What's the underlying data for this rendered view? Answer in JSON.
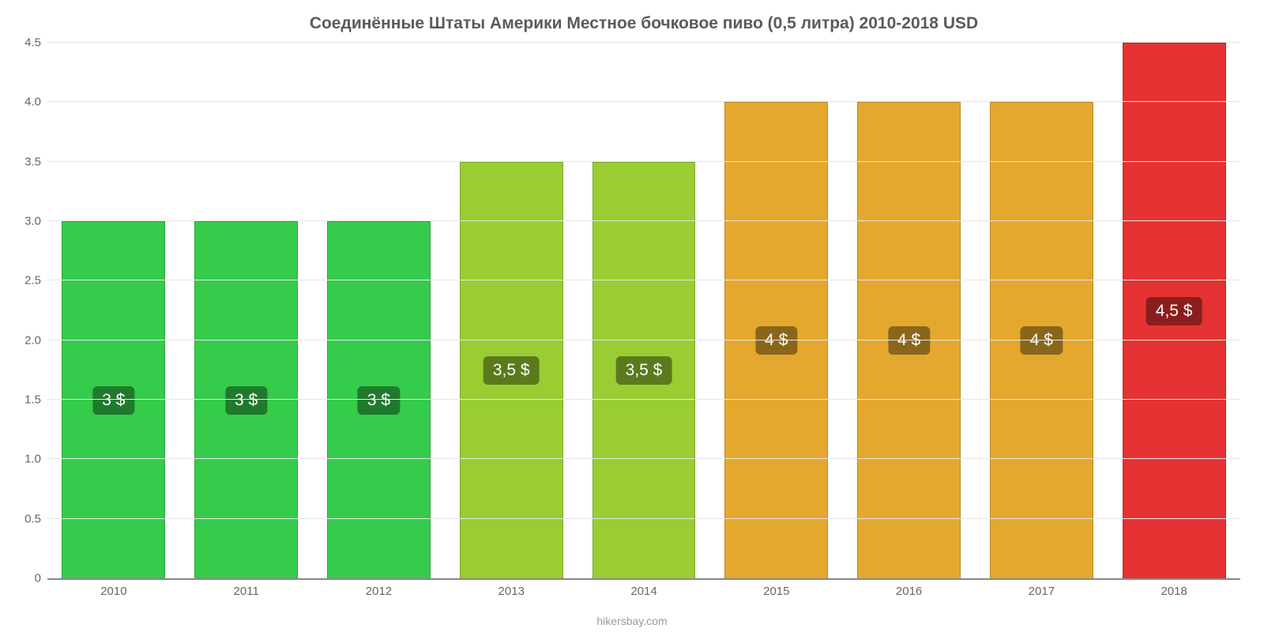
{
  "chart": {
    "type": "bar",
    "title": "Соединённые Штаты Америки Местное бочковое пиво (0,5 литра) 2010-2018 USD",
    "title_fontsize": 21,
    "title_color": "#5a5a5a",
    "background_color": "#ffffff",
    "source_label": "hikersbay.com",
    "source_color": "#999999",
    "ylim_min": 0,
    "ylim_max": 4.5,
    "yticks": [
      {
        "v": 0,
        "label": "0"
      },
      {
        "v": 0.5,
        "label": "0.5"
      },
      {
        "v": 1.0,
        "label": "1.0"
      },
      {
        "v": 1.5,
        "label": "1.5"
      },
      {
        "v": 2.0,
        "label": "2.0"
      },
      {
        "v": 2.5,
        "label": "2.5"
      },
      {
        "v": 3.0,
        "label": "3.0"
      },
      {
        "v": 3.5,
        "label": "3.5"
      },
      {
        "v": 4.0,
        "label": "4.0"
      },
      {
        "v": 4.5,
        "label": "4.5"
      }
    ],
    "grid_color": "#e6e6e6",
    "axis_label_color": "#666666",
    "axis_label_fontsize": 15,
    "bar_width_ratio": 0.78,
    "bars": [
      {
        "category": "2010",
        "value": 3.0,
        "label": "3 $",
        "fill": "#35cb4b",
        "border": "#2aa63b",
        "label_bg": "#1f7a2d"
      },
      {
        "category": "2011",
        "value": 3.0,
        "label": "3 $",
        "fill": "#35cb4b",
        "border": "#2aa63b",
        "label_bg": "#1f7a2d"
      },
      {
        "category": "2012",
        "value": 3.0,
        "label": "3 $",
        "fill": "#35cb4b",
        "border": "#2aa63b",
        "label_bg": "#1f7a2d"
      },
      {
        "category": "2013",
        "value": 3.5,
        "label": "3,5 $",
        "fill": "#9acd32",
        "border": "#7aa627",
        "label_bg": "#5c7a1d"
      },
      {
        "category": "2014",
        "value": 3.5,
        "label": "3,5 $",
        "fill": "#9acd32",
        "border": "#7aa627",
        "label_bg": "#5c7a1d"
      },
      {
        "category": "2015",
        "value": 4.0,
        "label": "4 $",
        "fill": "#e5a82e",
        "border": "#b98724",
        "label_bg": "#8a661b"
      },
      {
        "category": "2016",
        "value": 4.0,
        "label": "4 $",
        "fill": "#e5a82e",
        "border": "#b98724",
        "label_bg": "#8a661b"
      },
      {
        "category": "2017",
        "value": 4.0,
        "label": "4 $",
        "fill": "#e5a82e",
        "border": "#b98724",
        "label_bg": "#8a661b"
      },
      {
        "category": "2018",
        "value": 4.5,
        "label": "4,5 $",
        "fill": "#e53232",
        "border": "#b82828",
        "label_bg": "#8a1e1e"
      }
    ],
    "bar_label_fontsize": 21,
    "bar_label_color": "#ffffff"
  }
}
